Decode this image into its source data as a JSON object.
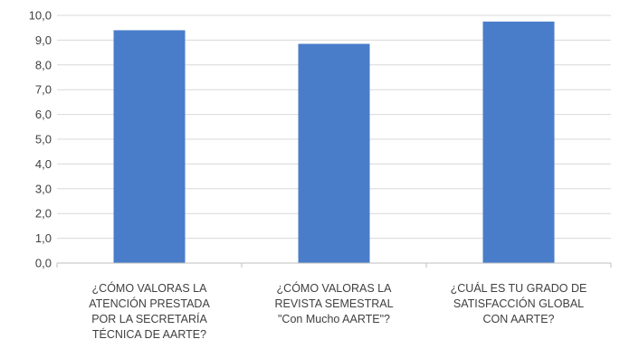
{
  "chart_data": {
    "type": "bar",
    "title": "",
    "xlabel": "",
    "ylabel": "",
    "categories": [
      [
        "¿CÓMO VALORAS LA",
        "ATENCIÓN PRESTADA",
        "POR LA SECRETARÍA",
        "TÉCNICA DE AARTE?"
      ],
      [
        "¿CÓMO VALORAS LA",
        "REVISTA SEMESTRAL",
        "\"Con Mucho AARTE\"?"
      ],
      [
        "¿CUÁL ES TU GRADO DE",
        "SATISFACCIÓN GLOBAL",
        "CON AARTE?"
      ]
    ],
    "values": [
      9.4,
      8.85,
      9.75
    ],
    "ylim": [
      0,
      10
    ],
    "yticks": [
      "0,0",
      "1,0",
      "2,0",
      "3,0",
      "4,0",
      "5,0",
      "6,0",
      "7,0",
      "8,0",
      "9,0",
      "10,0"
    ],
    "grid": true,
    "legend": "none",
    "colors": {
      "bar": "#4a7dc9",
      "grid": "#d9d9d9",
      "axis": "#bfbfbf"
    }
  }
}
